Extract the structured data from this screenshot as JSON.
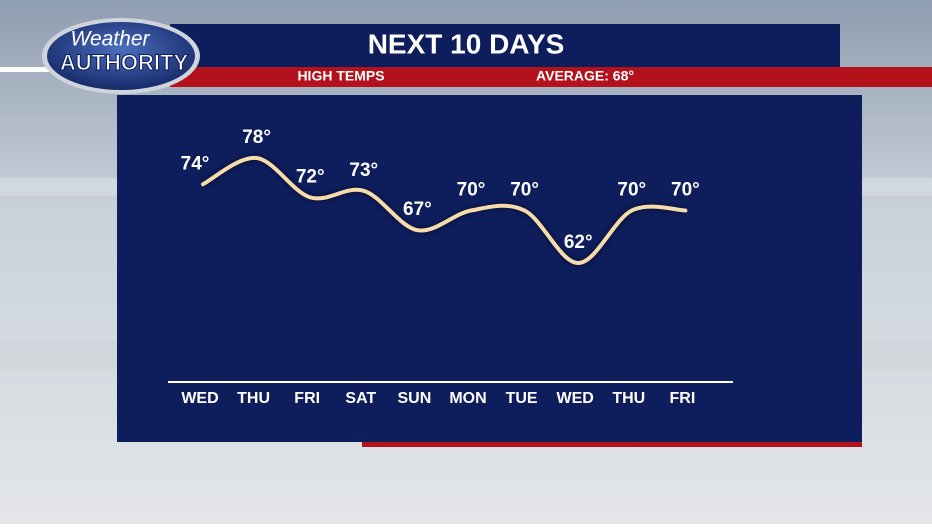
{
  "logo": {
    "line1": "Weather",
    "line2": "AUTHORITY"
  },
  "chart_data": {
    "type": "line",
    "title": "NEXT 10 DAYS",
    "subtitle": "HIGH TEMPS",
    "annotation": "AVERAGE: 68°",
    "categories": [
      "WED",
      "THU",
      "FRI",
      "SAT",
      "SUN",
      "MON",
      "TUE",
      "WED",
      "THU",
      "FRI"
    ],
    "values": [
      74,
      78,
      72,
      73,
      67,
      70,
      70,
      62,
      70,
      70
    ],
    "value_labels": [
      "74°",
      "78°",
      "72°",
      "73°",
      "67°",
      "70°",
      "70°",
      "62°",
      "70°",
      "70°"
    ],
    "color": "#f5dcaa"
  }
}
